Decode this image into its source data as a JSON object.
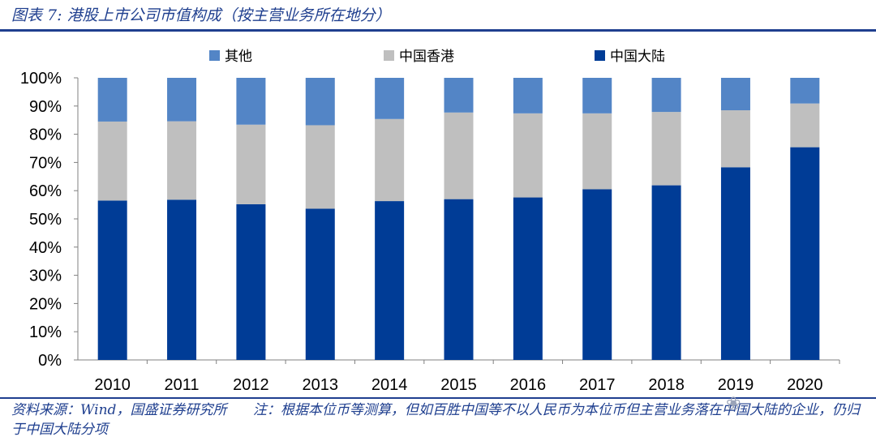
{
  "header": {
    "title": "图表 7:  港股上市公司市值构成（按主营业务所在地分）"
  },
  "footer": {
    "source": "资料来源：Wind，国盛证券研究所",
    "note": "注：根据本位币等测算，但如百胜中国等不以人民币为本位币但主营业务落在中国大陆的企业，仍归于中国大陆分项"
  },
  "chart_data": {
    "type": "bar",
    "stacked": true,
    "categories": [
      "2010",
      "2011",
      "2012",
      "2013",
      "2014",
      "2015",
      "2016",
      "2017",
      "2018",
      "2019",
      "2020"
    ],
    "series": [
      {
        "name": "中国大陆",
        "color": "#003C96",
        "values": [
          56.5,
          56.8,
          55.2,
          53.6,
          56.3,
          57.0,
          57.6,
          60.5,
          61.9,
          68.3,
          75.4
        ]
      },
      {
        "name": "中国香港",
        "color": "#BFBFBF",
        "values": [
          28.0,
          27.8,
          28.2,
          29.6,
          29.1,
          30.7,
          29.8,
          26.9,
          26.0,
          20.2,
          15.5
        ]
      },
      {
        "name": "其他",
        "color": "#5385C6",
        "values": [
          15.5,
          15.4,
          16.6,
          16.8,
          14.6,
          12.3,
          12.6,
          12.6,
          12.1,
          11.5,
          9.1
        ]
      }
    ],
    "legend_order": [
      "其他",
      "中国香港",
      "中国大陆"
    ],
    "legend_position": "top",
    "ylim": [
      0,
      100
    ],
    "yticks": [
      "0%",
      "10%",
      "20%",
      "30%",
      "40%",
      "50%",
      "60%",
      "70%",
      "80%",
      "90%",
      "100%"
    ],
    "grid": false
  }
}
